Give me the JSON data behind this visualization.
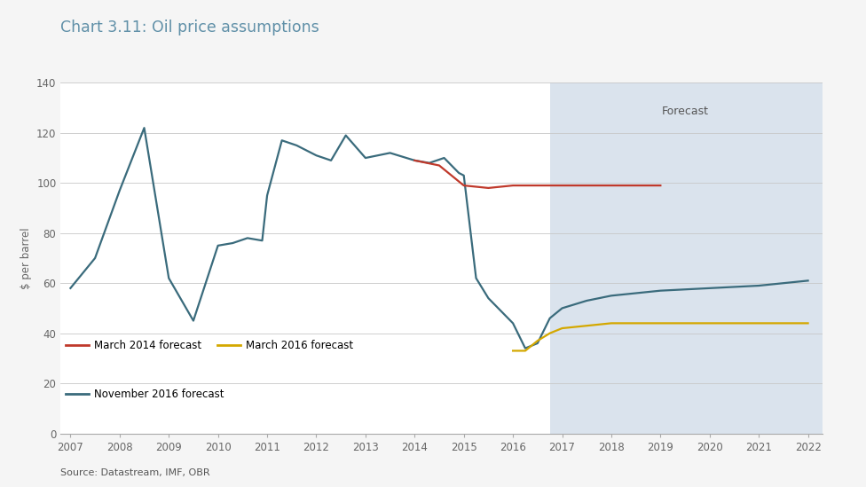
{
  "title": "Chart 3.11: Oil price assumptions",
  "ylabel": "$ per barrel",
  "source": "Source: Datastream, IMF, OBR",
  "forecast_label": "Forecast",
  "forecast_start": 2016.75,
  "xlim": [
    2006.8,
    2022.3
  ],
  "ylim": [
    0,
    140
  ],
  "yticks": [
    0,
    20,
    40,
    60,
    80,
    100,
    120,
    140
  ],
  "xticks": [
    2007,
    2008,
    2009,
    2010,
    2011,
    2012,
    2013,
    2014,
    2015,
    2016,
    2017,
    2018,
    2019,
    2020,
    2021,
    2022
  ],
  "background_color": "#f5f5f5",
  "plot_bg_color": "#ffffff",
  "forecast_bg_color": "#dae3ed",
  "grid_color": "#c8c8c8",
  "title_color": "#6090a8",
  "nov2016_x": [
    2007,
    2007.5,
    2008,
    2008.5,
    2009,
    2009.5,
    2010,
    2010.3,
    2010.6,
    2010.9,
    2011,
    2011.3,
    2011.6,
    2012,
    2012.3,
    2012.6,
    2013,
    2013.5,
    2014,
    2014.3,
    2014.6,
    2014.9,
    2015,
    2015.25,
    2015.5,
    2015.75,
    2016,
    2016.25,
    2016.5,
    2016.75,
    2017,
    2017.5,
    2018,
    2018.5,
    2019,
    2019.5,
    2020,
    2020.5,
    2021,
    2021.5,
    2022
  ],
  "nov2016_y": [
    58,
    70,
    97,
    122,
    62,
    45,
    75,
    76,
    78,
    77,
    95,
    117,
    115,
    111,
    109,
    119,
    110,
    112,
    109,
    108,
    110,
    104,
    103,
    62,
    54,
    49,
    44,
    34,
    36,
    46,
    50,
    53,
    55,
    56,
    57,
    57.5,
    58,
    58.5,
    59,
    60,
    61
  ],
  "mar2014_x": [
    2014,
    2014.5,
    2015,
    2015.5,
    2016,
    2016.5,
    2017,
    2017.5,
    2018,
    2019
  ],
  "mar2014_y": [
    109,
    107,
    99,
    98,
    99,
    99,
    99,
    99,
    99,
    99
  ],
  "mar2016_x": [
    2016,
    2016.25,
    2016.5,
    2016.75,
    2017,
    2017.5,
    2018,
    2018.5,
    2019,
    2019.5,
    2020,
    2020.5,
    2021,
    2021.5,
    2022
  ],
  "mar2016_y": [
    33,
    33,
    37,
    40,
    42,
    43,
    44,
    44,
    44,
    44,
    44,
    44,
    44,
    44,
    44
  ],
  "nov2016_color": "#3a6b7c",
  "mar2014_color": "#c0392b",
  "mar2016_color": "#d4a800",
  "legend_entries": [
    "March 2014 forecast",
    "March 2016 forecast",
    "November 2016 forecast"
  ],
  "legend_colors": [
    "#c0392b",
    "#d4a800",
    "#3a6b7c"
  ],
  "tick_color": "#666666",
  "spine_color": "#aaaaaa"
}
